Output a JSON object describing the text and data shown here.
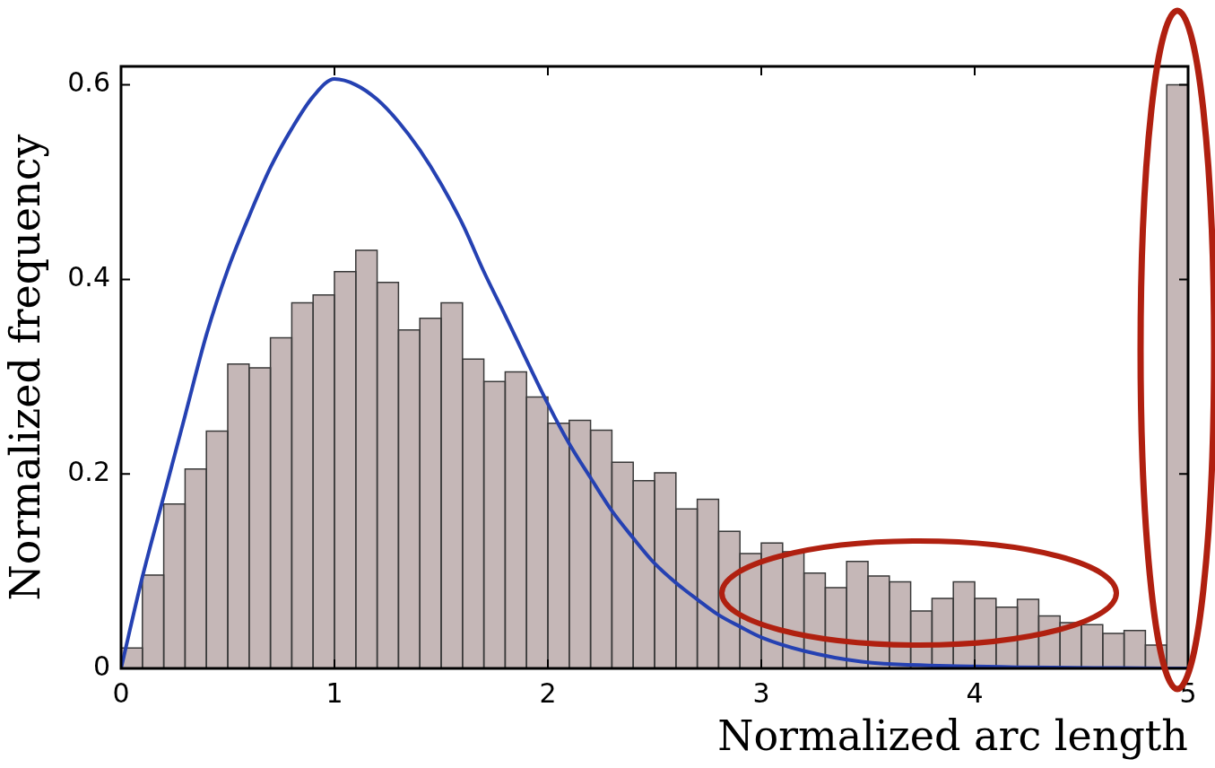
{
  "chart_data": {
    "type": "histogram",
    "xlabel": "Normalized arc length",
    "ylabel": "Normalized frequency",
    "bins": [
      0,
      0.1,
      0.2,
      0.3,
      0.4,
      0.5,
      0.6,
      0.7,
      0.8,
      0.9,
      1,
      1.1,
      1.2,
      1.3,
      1.4,
      1.5,
      1.6,
      1.7,
      1.8,
      1.9,
      2,
      2.1,
      2.2,
      2.3,
      2.4,
      2.5,
      2.6,
      2.7,
      2.8,
      2.9,
      3,
      3.1,
      3.2,
      3.3,
      3.4,
      3.5,
      3.6,
      3.7,
      3.8,
      3.9,
      4,
      4.1,
      4.2,
      4.3,
      4.4,
      4.5,
      4.6,
      4.7,
      4.8,
      4.9,
      5
    ],
    "values": [
      0.021,
      0.096,
      0.169,
      0.205,
      0.244,
      0.313,
      0.309,
      0.34,
      0.376,
      0.384,
      0.408,
      0.43,
      0.397,
      0.348,
      0.36,
      0.376,
      0.318,
      0.295,
      0.305,
      0.279,
      0.252,
      0.255,
      0.245,
      0.212,
      0.193,
      0.201,
      0.164,
      0.174,
      0.141,
      0.118,
      0.129,
      0.12,
      0.098,
      0.083,
      0.11,
      0.095,
      0.089,
      0.059,
      0.072,
      0.089,
      0.072,
      0.063,
      0.071,
      0.054,
      0.047,
      0.045,
      0.036,
      0.039,
      0.024,
      0.6
    ],
    "color": "#c5b7b7",
    "series": [
      {
        "type": "line",
        "color": "#2541b2",
        "x": [
          0,
          0.1,
          0.2,
          0.3,
          0.4,
          0.5,
          0.6,
          0.7,
          0.8,
          0.9,
          1,
          1.1,
          1.2,
          1.3,
          1.4,
          1.5,
          1.6,
          1.7,
          1.8,
          1.9,
          2,
          2.1,
          2.2,
          2.3,
          2.4,
          2.5,
          2.6,
          2.7,
          2.8,
          2.9,
          3,
          3.2,
          3.47,
          4,
          5
        ],
        "values": [
          0,
          0.094,
          0.177,
          0.26,
          0.343,
          0.41,
          0.465,
          0.515,
          0.555,
          0.588,
          0.606,
          0.6,
          0.585,
          0.562,
          0.533,
          0.498,
          0.457,
          0.408,
          0.363,
          0.317,
          0.272,
          0.231,
          0.196,
          0.162,
          0.134,
          0.108,
          0.088,
          0.071,
          0.055,
          0.043,
          0.032,
          0.018,
          0.007,
          0.002,
          0
        ]
      }
    ],
    "xlim": [
      0,
      5
    ],
    "xticks": [
      0,
      1,
      2,
      3,
      4,
      5
    ],
    "ylim": [
      0,
      0.619
    ],
    "yticks": [
      0,
      0.2,
      0.4,
      0.6
    ],
    "grid": false,
    "legend": false,
    "marker": "none"
  }
}
